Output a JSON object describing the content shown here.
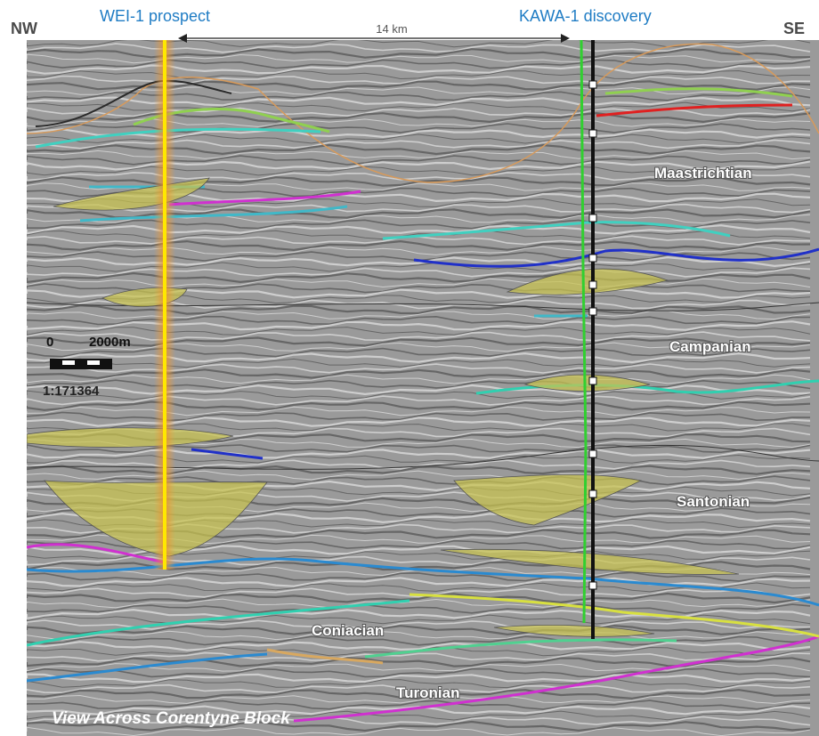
{
  "header": {
    "left_direction": "NW",
    "right_direction": "SE",
    "well_1": "WEI-1 prospect",
    "well_2": "KAWA-1 discovery",
    "distance": "14 km"
  },
  "scale": {
    "start": "0",
    "end": "2000m",
    "ratio": "1:171364"
  },
  "intervals": [
    "Maastrichtian",
    "Campanian",
    "Santonian",
    "Coniacian",
    "Turonian"
  ],
  "caption": "View Across Corentyne Block"
}
